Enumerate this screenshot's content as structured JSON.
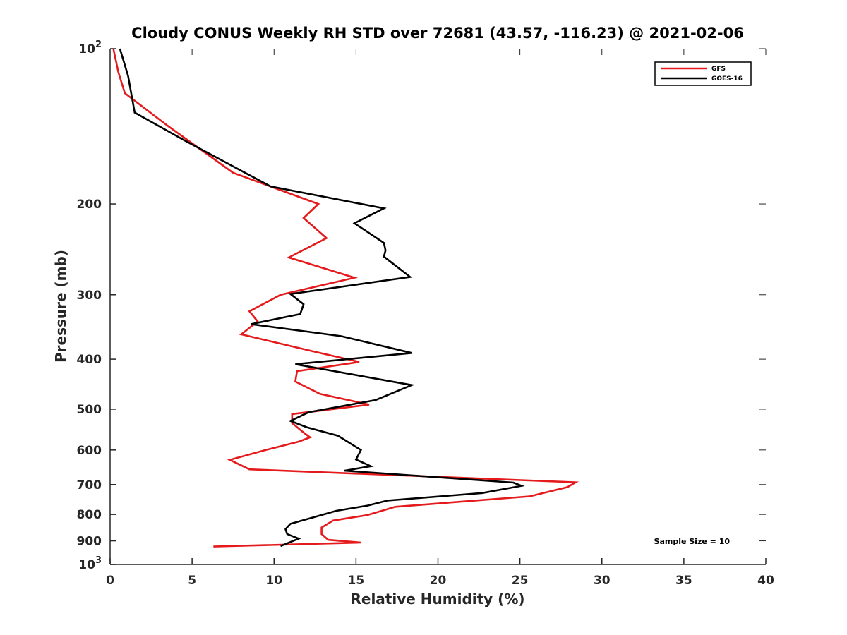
{
  "chart_data": {
    "type": "line",
    "title": "Cloudy CONUS Weekly RH STD over 72681 (43.57, -116.23) @ 2021-02-06",
    "xlabel": "Relative Humidity (%)",
    "ylabel": "Pressure (mb)",
    "xlim": [
      0,
      40
    ],
    "ylim": [
      100,
      1000
    ],
    "yscale": "log",
    "y_reversed": true,
    "grid": false,
    "legend_position": "top-right",
    "x_ticks": [
      0,
      5,
      10,
      15,
      20,
      25,
      30,
      35,
      40
    ],
    "x_tick_labels": [
      "0",
      "5",
      "10",
      "15",
      "20",
      "25",
      "30",
      "35",
      "40"
    ],
    "y_ticks": [
      100,
      200,
      300,
      400,
      500,
      600,
      700,
      800,
      900,
      1000
    ],
    "y_tick_labels": [
      {
        "base": "10",
        "exp": "2"
      },
      {
        "base": "200",
        "exp": ""
      },
      {
        "base": "300",
        "exp": ""
      },
      {
        "base": "400",
        "exp": ""
      },
      {
        "base": "500",
        "exp": ""
      },
      {
        "base": "600",
        "exp": ""
      },
      {
        "base": "700",
        "exp": ""
      },
      {
        "base": "800",
        "exp": ""
      },
      {
        "base": "900",
        "exp": ""
      },
      {
        "base": "10",
        "exp": "3"
      }
    ],
    "series": [
      {
        "name": "GFS",
        "color": "#e41a1c",
        "x": [
          0.2,
          0.5,
          0.9,
          3.5,
          7.5,
          12.7,
          11.8,
          13.2,
          10.9,
          14.9,
          10.4,
          8.5,
          9.0,
          8.0,
          12.5,
          15.2,
          11.4,
          11.3,
          12.8,
          15.8,
          11.1,
          11.1,
          11.8,
          12.2,
          11.5,
          9.5,
          7.3,
          8.5,
          28.4,
          27.9,
          25.6,
          17.4,
          15.7,
          13.6,
          12.9,
          12.9,
          13.3,
          15.3,
          6.3
        ],
        "y": [
          100,
          111,
          122,
          141,
          174,
          200,
          213,
          233,
          254,
          278,
          300,
          323,
          338,
          358,
          387,
          405,
          422,
          442,
          467,
          490,
          511,
          532,
          555,
          567,
          578,
          600,
          627,
          654,
          693,
          708,
          738,
          773,
          802,
          822,
          848,
          873,
          896,
          907,
          923
        ]
      },
      {
        "name": "GOES-16",
        "color": "#000000",
        "x": [
          0.6,
          1.1,
          1.5,
          4.6,
          9.8,
          16.7,
          14.9,
          16.7,
          16.8,
          16.7,
          18.3,
          11.0,
          11.8,
          11.6,
          8.6,
          14.1,
          18.4,
          11.3,
          18.4,
          16.2,
          12.1,
          11.0,
          12.0,
          13.9,
          15.3,
          15.0,
          15.9,
          14.3,
          24.6,
          25.1,
          22.7,
          16.9,
          15.7,
          13.8,
          12.3,
          11.0,
          10.7,
          10.8,
          11.5,
          10.4
        ],
        "y": [
          100,
          113,
          133,
          151,
          185,
          204,
          218,
          238,
          246,
          253,
          277,
          299,
          313,
          327,
          342,
          361,
          389,
          409,
          449,
          480,
          507,
          527,
          542,
          563,
          600,
          626,
          645,
          658,
          694,
          704,
          727,
          752,
          769,
          787,
          812,
          834,
          854,
          873,
          891,
          921
        ]
      }
    ],
    "annotations": [
      {
        "text": "Sample Size = 10",
        "position": "bottom-right"
      }
    ]
  }
}
